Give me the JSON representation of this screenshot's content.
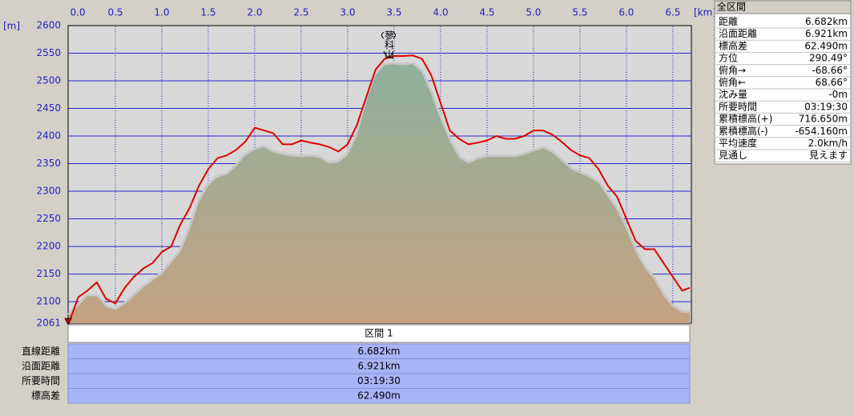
{
  "chart_data": {
    "type": "line",
    "x_unit": "[km]",
    "y_unit": "[m]",
    "annotation": "蓼科山",
    "x": [
      0,
      0.1,
      0.2,
      0.3,
      0.4,
      0.5,
      0.6,
      0.7,
      0.8,
      0.9,
      1.0,
      1.1,
      1.2,
      1.3,
      1.4,
      1.5,
      1.6,
      1.7,
      1.8,
      1.9,
      2.0,
      2.1,
      2.2,
      2.3,
      2.4,
      2.5,
      2.6,
      2.7,
      2.8,
      2.9,
      3.0,
      3.1,
      3.2,
      3.3,
      3.4,
      3.5,
      3.6,
      3.7,
      3.8,
      3.9,
      4.0,
      4.1,
      4.2,
      4.3,
      4.4,
      4.5,
      4.6,
      4.7,
      4.8,
      4.9,
      5.0,
      5.1,
      5.2,
      5.3,
      5.4,
      5.5,
      5.6,
      5.7,
      5.8,
      5.9,
      6.0,
      6.1,
      6.2,
      6.3,
      6.4,
      6.5,
      6.6,
      6.682
    ],
    "series": [
      {
        "kind": "area",
        "color": "#8fb09c",
        "color_bottom": "#c4a282",
        "outline": "#c8c8c8",
        "values": [
          2075,
          2092,
          2110,
          2110,
          2090,
          2085,
          2095,
          2110,
          2125,
          2138,
          2150,
          2170,
          2190,
          2230,
          2280,
          2310,
          2325,
          2330,
          2345,
          2365,
          2375,
          2380,
          2370,
          2366,
          2363,
          2362,
          2363,
          2360,
          2350,
          2352,
          2365,
          2400,
          2460,
          2510,
          2528,
          2530,
          2528,
          2530,
          2515,
          2475,
          2430,
          2390,
          2360,
          2350,
          2358,
          2362,
          2362,
          2362,
          2362,
          2366,
          2372,
          2378,
          2370,
          2355,
          2340,
          2332,
          2325,
          2315,
          2290,
          2265,
          2230,
          2190,
          2160,
          2140,
          2110,
          2090,
          2080,
          2080
        ]
      },
      {
        "kind": "line",
        "color": "#e00000",
        "values": [
          2061,
          2108,
          2120,
          2135,
          2105,
          2097,
          2125,
          2145,
          2160,
          2170,
          2190,
          2200,
          2240,
          2270,
          2310,
          2340,
          2360,
          2365,
          2375,
          2390,
          2415,
          2410,
          2405,
          2385,
          2385,
          2392,
          2388,
          2385,
          2380,
          2372,
          2385,
          2420,
          2470,
          2520,
          2540,
          2545,
          2545,
          2546,
          2540,
          2510,
          2460,
          2410,
          2395,
          2385,
          2388,
          2392,
          2400,
          2395,
          2395,
          2400,
          2410,
          2410,
          2403,
          2390,
          2375,
          2365,
          2360,
          2340,
          2310,
          2290,
          2250,
          2210,
          2195,
          2195,
          2170,
          2145,
          2120,
          2125
        ]
      }
    ],
    "xlim": [
      0,
      6.682
    ],
    "xticks": [
      {
        "value": 0,
        "label": "0.0"
      },
      0.5,
      {
        "value": 1,
        "label": "1.0"
      },
      1.5,
      {
        "value": 2,
        "label": "2.0"
      },
      2.5,
      {
        "value": 3,
        "label": "3.0"
      },
      3.5,
      {
        "value": 4,
        "label": "4.0"
      },
      4.5,
      {
        "value": 5,
        "label": "5.0"
      },
      5.5,
      {
        "value": 6,
        "label": "6.0"
      },
      6.5
    ],
    "ylim": [
      2061,
      2600
    ],
    "yticks": [
      2061,
      2100,
      2150,
      2200,
      2250,
      2300,
      2350,
      2400,
      2450,
      2500,
      2550,
      2600
    ],
    "grid": true,
    "grid_color": "#2828c8"
  },
  "summary": {
    "title": "全区間",
    "rows": [
      [
        "距離",
        "6.682km"
      ],
      [
        "沿面距離",
        "6.921km"
      ],
      [
        "標高差",
        "62.490m"
      ],
      [
        "方位",
        "290.49°"
      ],
      [
        "俯角→",
        "-68.66°"
      ],
      [
        "俯角←",
        "68.66°"
      ],
      [
        "沈み量",
        "-0m"
      ],
      [
        "所要時間",
        "03:19:30"
      ],
      [
        "累積標高(+)",
        "716.650m"
      ],
      [
        "累積標高(-)",
        "-654.160m"
      ],
      [
        "平均速度",
        "2.0km/h"
      ],
      [
        "見通し",
        "見えます"
      ]
    ]
  },
  "section": {
    "header": "区間 1",
    "rows": [
      [
        "直線距離",
        "6.682km"
      ],
      [
        "沿面距離",
        "6.921km"
      ],
      [
        "所要時間",
        "03:19:30"
      ],
      [
        "標高差",
        "62.490m"
      ]
    ]
  }
}
